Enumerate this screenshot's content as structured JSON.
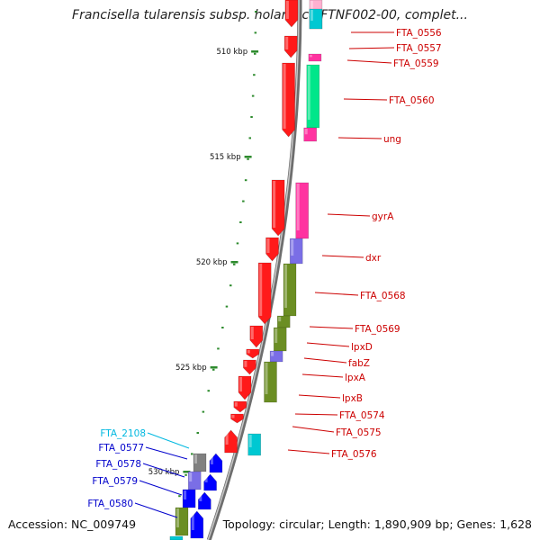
{
  "title": "Francisella tularensis subsp. holarctica FTNF002-00, complet...",
  "accession": "Accession: NC_009749",
  "topology": "Topology: circular; Length: 1,890,909 bp; Genes: 1,628",
  "colors": {
    "cds": "#ff1a1a",
    "info_storage": "#ff33a0",
    "metabolism": "#6b8e23",
    "cell_process": "#00e68a",
    "transport": "#7a6ee6",
    "other": "#00c8d2",
    "rna": "#0000ff",
    "tick": "#2e8b2e",
    "label_red": "#cc0000",
    "label_blue": "#0000cc",
    "label_cyan": "#00b8e0",
    "backbone": "#888888"
  },
  "scale_labels": [
    {
      "label": "510 kbp"
    },
    {
      "label": "515 kbp"
    },
    {
      "label": "520 kbp"
    },
    {
      "label": "525 kbp"
    },
    {
      "label": "530 kbp"
    }
  ],
  "gene_labels": [
    {
      "label": "FTA_0556",
      "color": "red"
    },
    {
      "label": "FTA_0557",
      "color": "red"
    },
    {
      "label": "FTA_0559",
      "color": "red"
    },
    {
      "label": "FTA_0560",
      "color": "red"
    },
    {
      "label": "ung",
      "color": "red"
    },
    {
      "label": "gyrA",
      "color": "red"
    },
    {
      "label": "dxr",
      "color": "red"
    },
    {
      "label": "FTA_0568",
      "color": "red"
    },
    {
      "label": "FTA_0569",
      "color": "red"
    },
    {
      "label": "lpxD",
      "color": "red"
    },
    {
      "label": "fabZ",
      "color": "red"
    },
    {
      "label": "lpxA",
      "color": "red"
    },
    {
      "label": "lpxB",
      "color": "red"
    },
    {
      "label": "FTA_0574",
      "color": "red"
    },
    {
      "label": "FTA_0575",
      "color": "red"
    },
    {
      "label": "FTA_0576",
      "color": "red"
    },
    {
      "label": "FTA_2108",
      "color": "cyan"
    },
    {
      "label": "FTA_0577",
      "color": "blue"
    },
    {
      "label": "FTA_0578",
      "color": "blue"
    },
    {
      "label": "FTA_0579",
      "color": "blue"
    },
    {
      "label": "FTA_0580",
      "color": "blue"
    }
  ]
}
